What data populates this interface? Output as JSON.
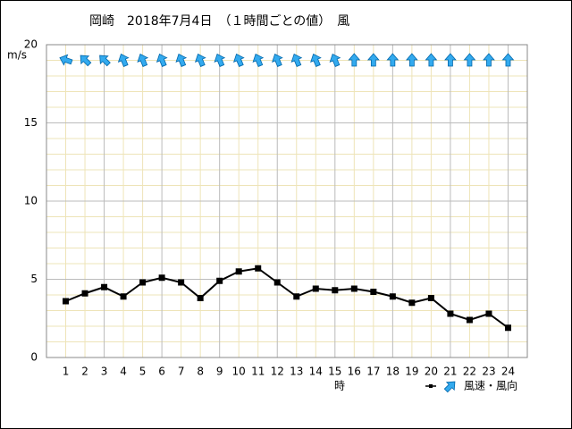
{
  "chart_data": {
    "type": "line",
    "title": "岡崎　2018年7月4日　（１時間ごとの値）　風",
    "y_unit": "m/s",
    "x_label": "時",
    "legend_label": "風速・風向",
    "x": [
      1,
      2,
      3,
      4,
      5,
      6,
      7,
      8,
      9,
      10,
      11,
      12,
      13,
      14,
      15,
      16,
      17,
      18,
      19,
      20,
      21,
      22,
      23,
      24
    ],
    "xlim": [
      0,
      25
    ],
    "xticks": [
      1,
      2,
      3,
      4,
      5,
      6,
      7,
      8,
      9,
      10,
      11,
      12,
      13,
      14,
      15,
      16,
      17,
      18,
      19,
      20,
      21,
      22,
      23,
      24
    ],
    "ylim": [
      0,
      20
    ],
    "yticks": [
      0,
      5,
      10,
      15,
      20
    ],
    "minor_grid_step": 1,
    "x_major_grid_step": 3,
    "series": [
      {
        "color": "#000000",
        "values": [
          3.6,
          4.1,
          4.5,
          3.9,
          4.8,
          5.1,
          4.8,
          3.8,
          4.9,
          5.5,
          5.7,
          4.8,
          3.9,
          4.4,
          4.3,
          4.4,
          4.2,
          3.9,
          3.5,
          3.8,
          2.8,
          2.4,
          2.8,
          1.9
        ]
      }
    ],
    "arrow_color": "#33aaee",
    "directions_deg": [
      290,
      315,
      315,
      337.5,
      337.5,
      337.5,
      337.5,
      337.5,
      337.5,
      337.5,
      337.5,
      337.5,
      337.5,
      337.5,
      337.5,
      0,
      0,
      0,
      0,
      0,
      0,
      0,
      0,
      0
    ]
  }
}
